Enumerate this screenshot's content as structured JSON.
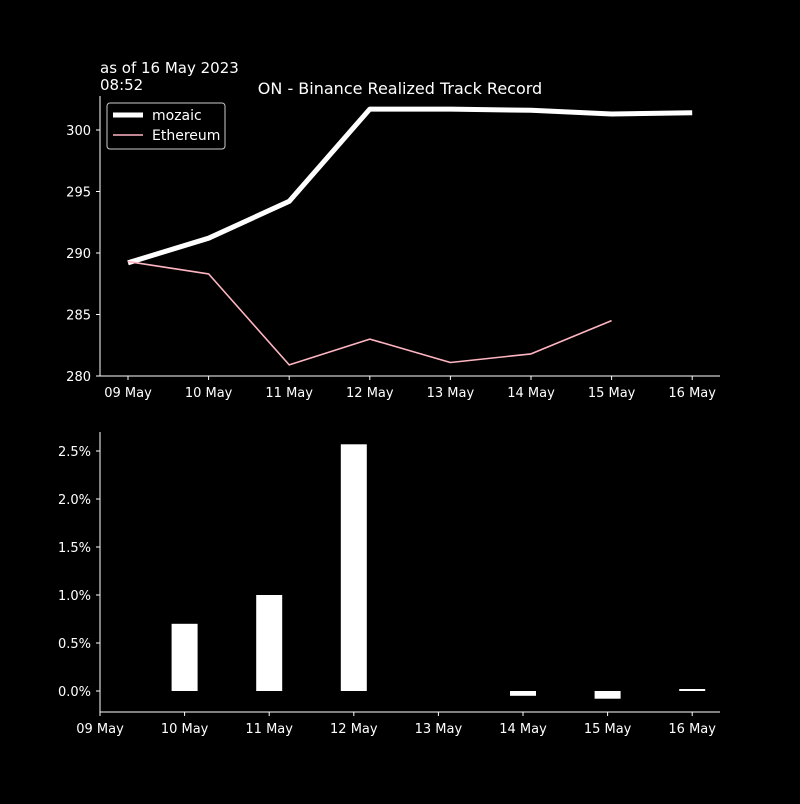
{
  "header": {
    "asof_line1": "as of 16 May 2023",
    "asof_line2": "08:52",
    "title": "ON - Binance Realized Track Record"
  },
  "colors": {
    "background": "#000000",
    "axes": "#ffffff",
    "mozaic": "#ffffff",
    "ethereum": "#ffb6c1",
    "bars": "#ffffff"
  },
  "chart_data": [
    {
      "type": "line",
      "title": "ON - Binance Realized Track Record",
      "x": [
        "09 May",
        "10 May",
        "11 May",
        "12 May",
        "13 May",
        "14 May",
        "15 May",
        "16 May"
      ],
      "ylim": [
        280,
        302.5
      ],
      "yticks": [
        280,
        285,
        290,
        295,
        300
      ],
      "legend": "top-left",
      "grid": false,
      "series": [
        {
          "name": "mozaic",
          "values": [
            289.2,
            291.2,
            294.2,
            301.7,
            301.7,
            301.6,
            301.3,
            301.4
          ]
        },
        {
          "name": "Ethereum",
          "values": [
            289.3,
            288.3,
            280.9,
            283.0,
            281.1,
            281.8,
            284.5,
            null
          ]
        }
      ]
    },
    {
      "type": "bar",
      "x": [
        "09 May",
        "10 May",
        "11 May",
        "12 May",
        "13 May",
        "14 May",
        "15 May",
        "16 May"
      ],
      "values": [
        0,
        0.7,
        1.0,
        2.57,
        0,
        -0.05,
        -0.08,
        0.02
      ],
      "unit": "%",
      "ylim": [
        -0.2,
        2.7
      ],
      "yticks": [
        "0.0%",
        "0.5%",
        "1.0%",
        "1.5%",
        "2.0%",
        "2.5%"
      ],
      "grid": false
    }
  ]
}
